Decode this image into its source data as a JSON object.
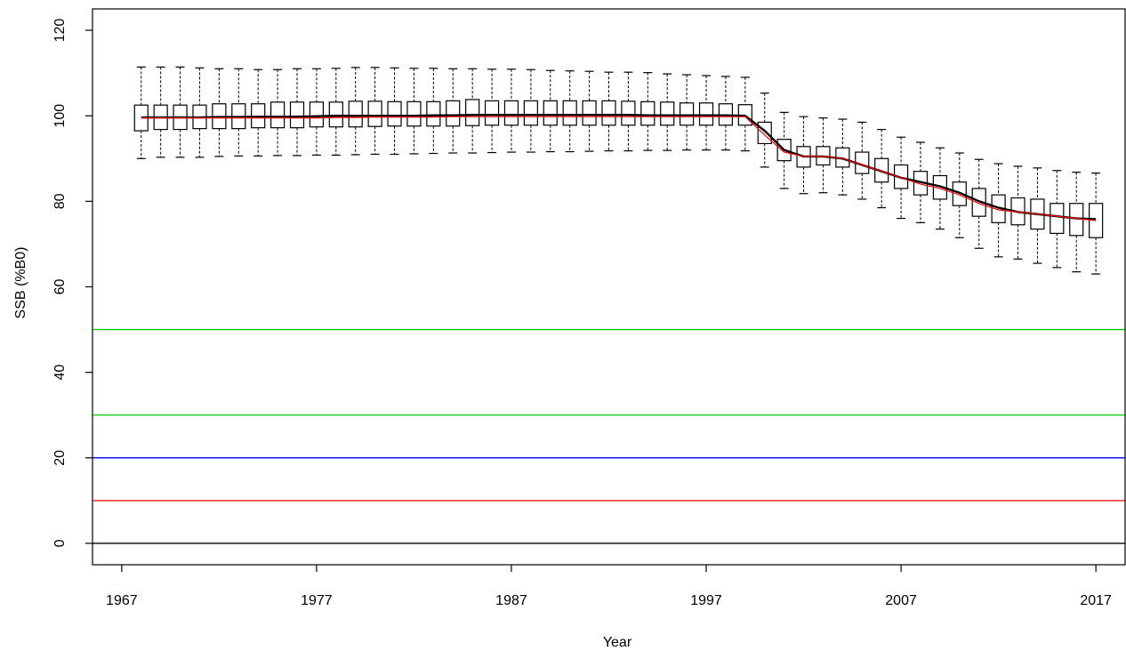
{
  "chart_data": {
    "type": "box",
    "title": "",
    "xlabel": "Year",
    "ylabel": "SSB (%B0)",
    "xlim": [
      1965.5,
      2018.5
    ],
    "ylim": [
      -5,
      125
    ],
    "xticks": [
      1967,
      1977,
      1987,
      1997,
      2007,
      2017
    ],
    "xtick_labels": [
      "1967",
      "1977",
      "1987",
      "1997",
      "2007",
      "2017"
    ],
    "yticks": [
      0,
      20,
      40,
      60,
      80,
      100,
      120
    ],
    "ytick_labels": [
      "0",
      "20",
      "40",
      "60",
      "80",
      "100",
      "120"
    ],
    "grid": false,
    "reference_lines": [
      {
        "y": 50,
        "color": "#00cc00"
      },
      {
        "y": 30,
        "color": "#00cc00"
      },
      {
        "y": 20,
        "color": "#0000ff"
      },
      {
        "y": 10,
        "color": "#ff0000"
      },
      {
        "y": 0,
        "color": "#000000"
      }
    ],
    "median_line_color": "#ff0000",
    "mean_line_color": "#000000",
    "years": [
      1968,
      1969,
      1970,
      1971,
      1972,
      1973,
      1974,
      1975,
      1976,
      1977,
      1978,
      1979,
      1980,
      1981,
      1982,
      1983,
      1984,
      1985,
      1986,
      1987,
      1988,
      1989,
      1990,
      1991,
      1992,
      1993,
      1994,
      1995,
      1996,
      1997,
      1998,
      1999,
      2000,
      2001,
      2002,
      2003,
      2004,
      2005,
      2006,
      2007,
      2008,
      2009,
      2010,
      2011,
      2012,
      2013,
      2014,
      2015,
      2016,
      2017
    ],
    "median": [
      99.5,
      99.5,
      99.5,
      99.5,
      99.5,
      99.5,
      99.5,
      99.5,
      99.5,
      99.5,
      99.6,
      99.6,
      99.7,
      99.7,
      99.7,
      99.7,
      99.8,
      99.8,
      99.8,
      99.8,
      99.8,
      99.8,
      99.8,
      99.8,
      99.8,
      99.8,
      99.8,
      99.8,
      99.8,
      99.8,
      99.8,
      99.8,
      95.5,
      91.5,
      90.5,
      90.5,
      90.0,
      88.5,
      87.0,
      85.5,
      84.0,
      83.0,
      81.5,
      79.5,
      78.0,
      77.5,
      77.0,
      76.5,
      76.0,
      75.5
    ],
    "mean": [
      99.6,
      99.6,
      99.6,
      99.6,
      99.7,
      99.7,
      99.8,
      99.8,
      99.8,
      99.9,
      100.0,
      100.0,
      100.0,
      100.0,
      100.0,
      100.1,
      100.1,
      100.2,
      100.2,
      100.2,
      100.2,
      100.2,
      100.2,
      100.2,
      100.2,
      100.2,
      100.1,
      100.1,
      100.1,
      100.1,
      100.1,
      100.0,
      96.5,
      92.0,
      90.5,
      90.5,
      90.0,
      88.5,
      87.0,
      85.5,
      84.5,
      83.5,
      82.0,
      80.0,
      78.5,
      77.5,
      77.0,
      76.5,
      76.0,
      75.8
    ],
    "q1": [
      96.5,
      96.8,
      96.8,
      97.0,
      97.0,
      97.0,
      97.2,
      97.2,
      97.2,
      97.4,
      97.4,
      97.4,
      97.5,
      97.6,
      97.6,
      97.6,
      97.6,
      97.7,
      97.8,
      97.8,
      97.8,
      97.8,
      97.8,
      97.8,
      97.8,
      97.8,
      97.8,
      97.8,
      97.8,
      97.8,
      97.8,
      97.8,
      93.5,
      89.5,
      88.0,
      88.5,
      88.0,
      86.5,
      84.5,
      83.0,
      81.5,
      80.5,
      79.0,
      76.5,
      75.0,
      74.5,
      73.5,
      72.5,
      72.0,
      71.5
    ],
    "q3": [
      102.5,
      102.5,
      102.5,
      102.5,
      102.8,
      102.8,
      102.8,
      103.2,
      103.2,
      103.2,
      103.2,
      103.4,
      103.4,
      103.3,
      103.3,
      103.3,
      103.5,
      103.8,
      103.5,
      103.5,
      103.5,
      103.5,
      103.5,
      103.5,
      103.5,
      103.4,
      103.3,
      103.2,
      103.0,
      103.0,
      102.8,
      102.6,
      98.5,
      94.5,
      92.8,
      92.8,
      92.5,
      91.5,
      90.0,
      88.5,
      87.0,
      86.0,
      84.5,
      83.0,
      81.5,
      80.8,
      80.5,
      79.5,
      79.5,
      79.5
    ],
    "whisker_low": [
      90.0,
      90.3,
      90.3,
      90.3,
      90.5,
      90.6,
      90.6,
      90.7,
      90.7,
      90.8,
      90.8,
      90.9,
      91.0,
      91.0,
      91.1,
      91.2,
      91.3,
      91.3,
      91.4,
      91.5,
      91.5,
      91.6,
      91.6,
      91.7,
      91.8,
      91.8,
      91.9,
      91.9,
      92.0,
      92.0,
      92.0,
      91.8,
      88.0,
      83.0,
      81.8,
      82.0,
      81.5,
      80.5,
      78.5,
      76.0,
      75.0,
      73.5,
      71.5,
      69.0,
      67.0,
      66.5,
      65.5,
      64.5,
      63.5,
      63.0
    ],
    "whisker_high": [
      111.4,
      111.4,
      111.4,
      111.2,
      111.0,
      111.0,
      110.8,
      110.8,
      111.0,
      111.0,
      111.1,
      111.3,
      111.3,
      111.2,
      111.1,
      111.1,
      111.0,
      111.0,
      110.9,
      110.9,
      110.8,
      110.6,
      110.5,
      110.4,
      110.2,
      110.2,
      110.1,
      109.8,
      109.6,
      109.4,
      109.2,
      109.0,
      105.3,
      100.8,
      99.8,
      99.5,
      99.2,
      98.5,
      96.8,
      95.0,
      93.8,
      92.5,
      91.3,
      89.8,
      88.8,
      88.2,
      87.8,
      87.2,
      86.8,
      86.6
    ]
  }
}
